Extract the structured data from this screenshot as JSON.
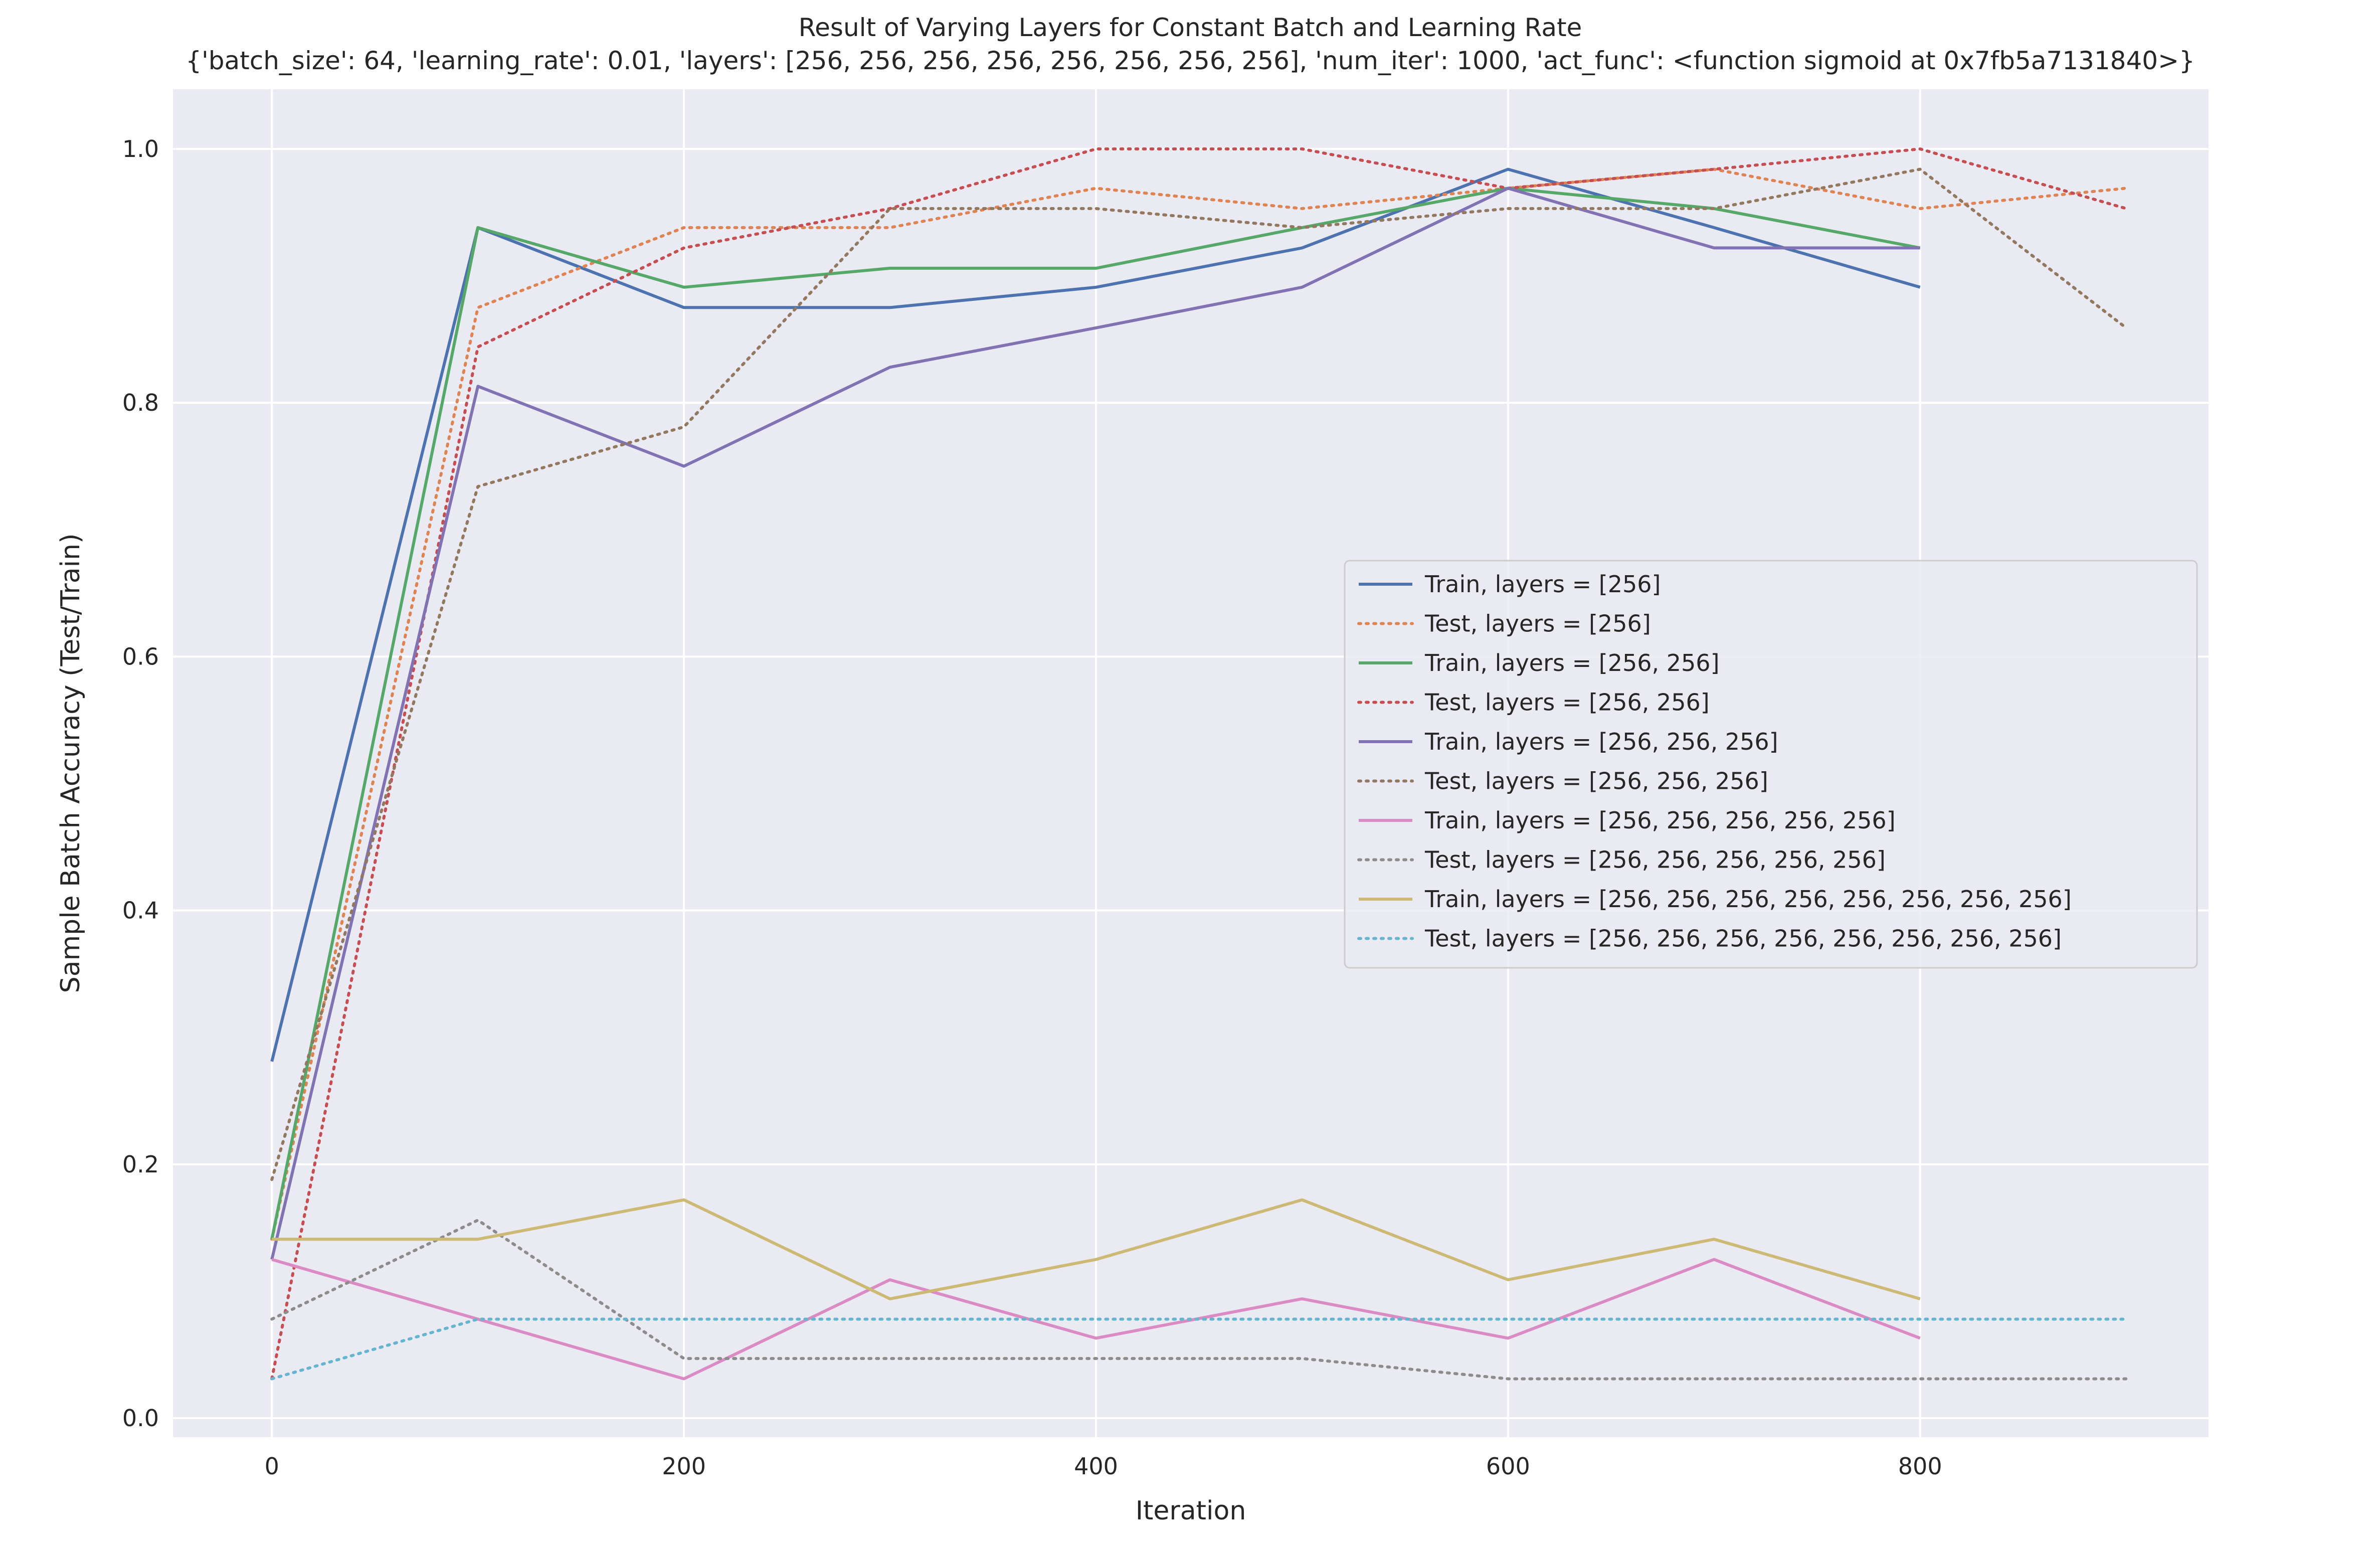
{
  "chart_data": {
    "type": "line",
    "title": "Result of Varying Layers for Constant Batch and Learning Rate",
    "subtitle": "{'batch_size': 64, 'learning_rate': 0.01, 'layers': [256, 256, 256, 256, 256, 256, 256, 256], 'num_iter': 1000, 'act_func': <function sigmoid at 0x7fb5a7131840>}",
    "xlabel": "Iteration",
    "ylabel": "Sample Batch Accuracy (Test/Train)",
    "xlim": [
      -48,
      940
    ],
    "ylim": [
      -0.015,
      1.047
    ],
    "xticks": [
      0,
      200,
      400,
      600,
      800
    ],
    "xtick_labels": [
      "0",
      "200",
      "400",
      "600",
      "800"
    ],
    "yticks": [
      0.0,
      0.2,
      0.4,
      0.6,
      0.8,
      1.0
    ],
    "ytick_labels": [
      "0.0",
      "0.2",
      "0.4",
      "0.6",
      "0.8",
      "1.0"
    ],
    "grid": true,
    "legend_position": "center-right",
    "series": [
      {
        "name": "Train, layers = [256]",
        "color": "#4c72b0",
        "dash": "solid",
        "x": [
          0,
          100,
          200,
          300,
          400,
          500,
          600,
          700,
          800
        ],
        "y": [
          0.281,
          0.938,
          0.875,
          0.875,
          0.891,
          0.922,
          0.984,
          0.938,
          0.891
        ]
      },
      {
        "name": "Test, layers = [256]",
        "color": "#dd8452",
        "dash": "dotted",
        "x": [
          0,
          100,
          200,
          300,
          400,
          500,
          600,
          700,
          800,
          900
        ],
        "y": [
          0.141,
          0.875,
          0.938,
          0.938,
          0.969,
          0.953,
          0.969,
          0.984,
          0.953,
          0.969
        ]
      },
      {
        "name": "Train, layers = [256, 256]",
        "color": "#55a868",
        "dash": "solid",
        "x": [
          0,
          100,
          200,
          300,
          400,
          500,
          600,
          700,
          800
        ],
        "y": [
          0.141,
          0.938,
          0.891,
          0.906,
          0.906,
          0.938,
          0.969,
          0.953,
          0.922
        ]
      },
      {
        "name": "Test, layers = [256, 256]",
        "color": "#c44e52",
        "dash": "dotted",
        "x": [
          0,
          100,
          200,
          300,
          400,
          500,
          600,
          700,
          800,
          900
        ],
        "y": [
          0.031,
          0.844,
          0.922,
          0.953,
          1.0,
          1.0,
          0.969,
          0.984,
          1.0,
          0.953
        ]
      },
      {
        "name": "Train, layers = [256, 256, 256]",
        "color": "#8172b3",
        "dash": "solid",
        "x": [
          0,
          100,
          200,
          300,
          400,
          500,
          600,
          700,
          800
        ],
        "y": [
          0.125,
          0.813,
          0.75,
          0.828,
          0.859,
          0.891,
          0.969,
          0.922,
          0.922
        ]
      },
      {
        "name": "Test, layers = [256, 256, 256]",
        "color": "#937860",
        "dash": "dotted",
        "x": [
          0,
          100,
          200,
          300,
          400,
          500,
          600,
          700,
          800,
          900
        ],
        "y": [
          0.188,
          0.734,
          0.781,
          0.953,
          0.953,
          0.938,
          0.953,
          0.953,
          0.984,
          0.859
        ]
      },
      {
        "name": "Train, layers = [256, 256, 256, 256, 256]",
        "color": "#da8bc3",
        "dash": "solid",
        "x": [
          0,
          100,
          200,
          300,
          400,
          500,
          600,
          700,
          800
        ],
        "y": [
          0.125,
          0.078,
          0.031,
          0.109,
          0.063,
          0.094,
          0.063,
          0.125,
          0.063
        ]
      },
      {
        "name": "Test, layers = [256, 256, 256, 256, 256]",
        "color": "#8c8c8c",
        "dash": "dotted",
        "x": [
          0,
          100,
          200,
          300,
          400,
          500,
          600,
          700,
          800,
          900
        ],
        "y": [
          0.078,
          0.156,
          0.047,
          0.047,
          0.047,
          0.047,
          0.031,
          0.031,
          0.031,
          0.031
        ]
      },
      {
        "name": "Train, layers = [256, 256, 256, 256, 256, 256, 256, 256]",
        "color": "#ccb974",
        "dash": "solid",
        "x": [
          0,
          100,
          200,
          300,
          400,
          500,
          600,
          700,
          800
        ],
        "y": [
          0.141,
          0.141,
          0.172,
          0.094,
          0.125,
          0.172,
          0.109,
          0.141,
          0.094
        ]
      },
      {
        "name": "Test, layers = [256, 256, 256, 256, 256, 256, 256, 256]",
        "color": "#64b5cd",
        "dash": "dotted",
        "x": [
          0,
          100,
          200,
          300,
          400,
          500,
          600,
          700,
          800,
          900
        ],
        "y": [
          0.031,
          0.078,
          0.078,
          0.078,
          0.078,
          0.078,
          0.078,
          0.078,
          0.078,
          0.078
        ]
      }
    ]
  }
}
